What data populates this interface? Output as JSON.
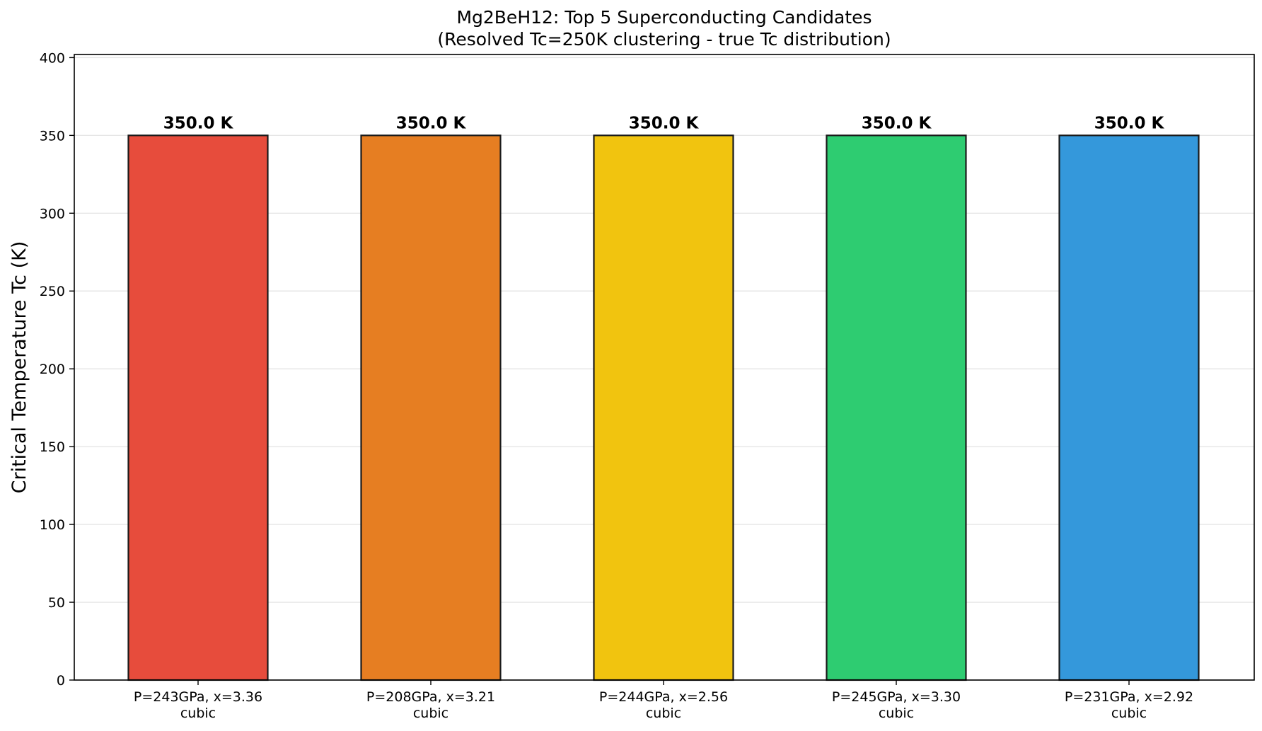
{
  "chart_data": {
    "type": "bar",
    "title": "Mg2BeH12: Top 5 Superconducting Candidates",
    "subtitle": "(Resolved Tc=250K clustering - true Tc distribution)",
    "xlabel": "",
    "ylabel": "Critical Temperature Tc (K)",
    "ylim": [
      0,
      402
    ],
    "yticks": [
      0,
      50,
      100,
      150,
      200,
      250,
      300,
      350,
      400
    ],
    "grid": "y",
    "categories": [
      {
        "line1": "P=243GPa, x=3.36",
        "line2": "cubic"
      },
      {
        "line1": "P=208GPa, x=3.21",
        "line2": "cubic"
      },
      {
        "line1": "P=244GPa, x=2.56",
        "line2": "cubic"
      },
      {
        "line1": "P=245GPa, x=3.30",
        "line2": "cubic"
      },
      {
        "line1": "P=231GPa, x=2.92",
        "line2": "cubic"
      }
    ],
    "values": [
      350.0,
      350.0,
      350.0,
      350.0,
      350.0
    ],
    "data_labels": [
      "350.0 K",
      "350.0 K",
      "350.0 K",
      "350.0 K",
      "350.0 K"
    ],
    "colors": [
      "#e74c3c",
      "#e67e22",
      "#f1c40f",
      "#2ecc71",
      "#3498db"
    ],
    "edge_color": "#1a1a1a",
    "grid_color": "#e6e6e6"
  }
}
